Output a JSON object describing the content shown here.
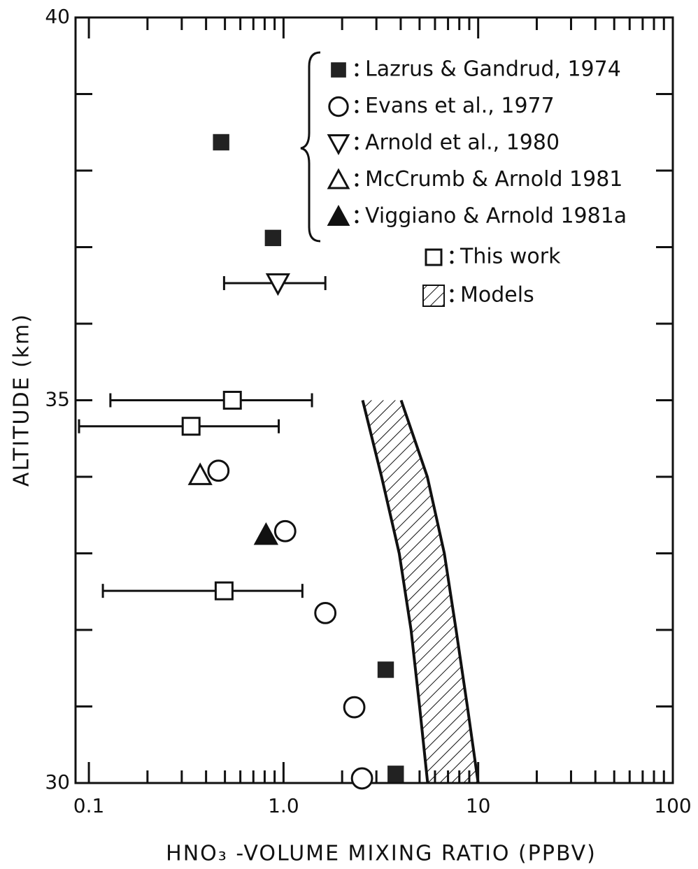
{
  "chart_data": {
    "type": "scatter",
    "xlabel": "HNO₃ -VOLUME MIXING RATIO (PPBV)",
    "ylabel": "ALTITUDE (km)",
    "xscale": "log",
    "xlim": [
      0.0854,
      100
    ],
    "ylim": [
      30,
      40
    ],
    "xticks": [
      0.1,
      {
        "value": 1.0,
        "label": "1.0"
      },
      10,
      100
    ],
    "xminorticks": [
      0.2,
      0.3,
      0.4,
      0.5,
      0.6,
      0.7,
      0.8,
      0.9,
      2,
      3,
      4,
      5,
      6,
      7,
      8,
      9,
      20,
      30,
      40,
      50,
      60,
      70,
      80,
      90
    ],
    "yticks": [
      30,
      35,
      40
    ],
    "yminorticks": [
      31,
      32,
      33,
      34,
      36,
      37,
      38,
      39
    ],
    "series": [
      {
        "name": "Lazrus & Gandrud, 1974",
        "marker": "square-filled",
        "color": "#222",
        "x": [
          0.478,
          0.883,
          3.35,
          3.77
        ],
        "y": [
          38.37,
          37.12,
          31.48,
          30.12
        ]
      },
      {
        "name": "Evans et al., 1977",
        "marker": "circle",
        "color": "#111",
        "x": [
          0.463,
          1.02,
          1.64,
          2.31,
          2.53
        ],
        "y": [
          34.08,
          33.29,
          32.22,
          30.99,
          30.06
        ]
      },
      {
        "name": "Arnold et al., 1980",
        "marker": "triangle-down",
        "color": "#111",
        "x": [
          0.936
        ],
        "y": [
          36.53
        ],
        "xmin": [
          0.495
        ],
        "xmax": [
          1.64
        ]
      },
      {
        "name": "McCrumb & Arnold 1981",
        "marker": "triangle",
        "color": "#111",
        "x": [
          0.373
        ],
        "y": [
          34.02
        ]
      },
      {
        "name": "Viggiano & Arnold 1981a",
        "marker": "triangle-filled",
        "color": "#111",
        "x": [
          0.813
        ],
        "y": [
          33.24
        ]
      },
      {
        "name": "This work",
        "marker": "square",
        "color": "#111",
        "x": [
          0.546,
          0.335,
          0.495
        ],
        "y": [
          35.0,
          34.66,
          32.51
        ],
        "xmin": [
          0.129,
          0.089,
          0.118
        ],
        "xmax": [
          1.4,
          0.945,
          1.25
        ]
      }
    ],
    "models": {
      "name": "Models",
      "color": "#111",
      "y": [
        35,
        34,
        33,
        32,
        31,
        30
      ],
      "left": [
        2.55,
        3.19,
        3.93,
        4.52,
        5.0,
        5.5
      ],
      "right": [
        4.02,
        5.48,
        6.7,
        7.7,
        8.8,
        10.0
      ]
    }
  }
}
